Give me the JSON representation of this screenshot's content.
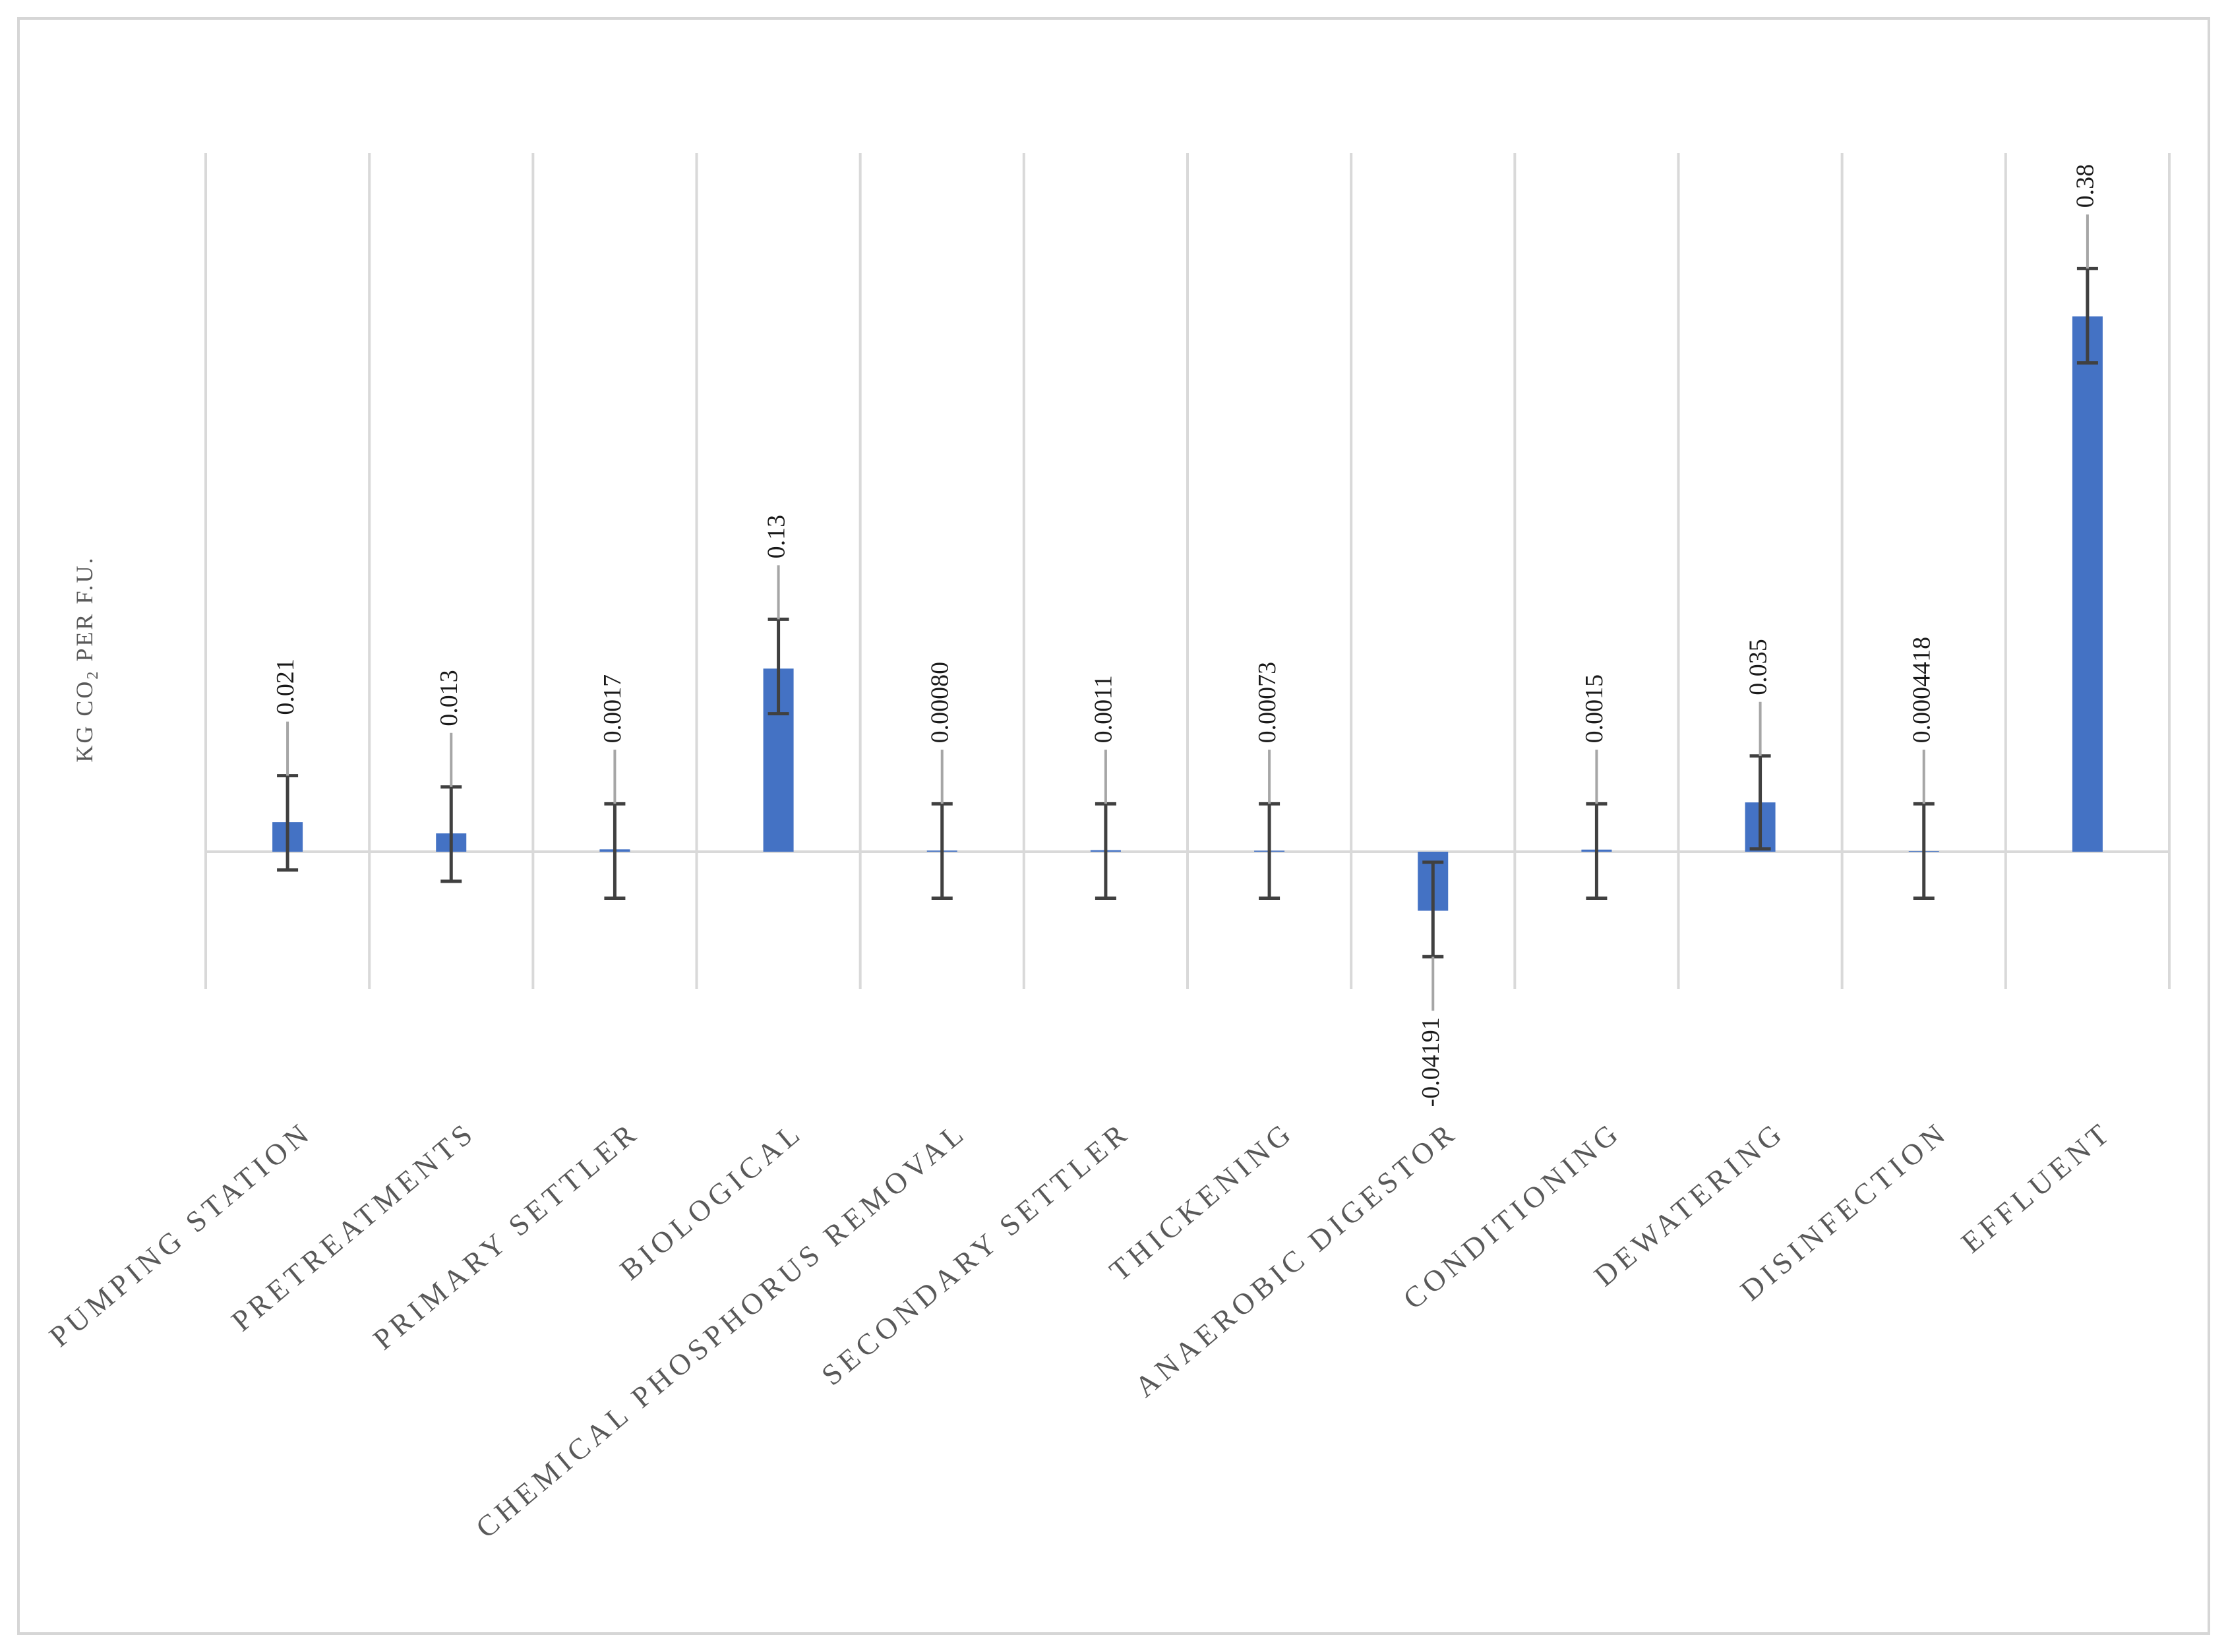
{
  "chart_data": {
    "type": "bar",
    "ylabel": "KG CO2 PER F.U.",
    "ylabel_parts": {
      "pre": "KG CO",
      "sub": "2",
      "post": " PER F.U."
    },
    "categories": [
      "PUMPING STATION",
      "PRETREATMENTS",
      "PRIMARY SETTLER",
      "BIOLOGICAL",
      "CHEMICAL PHOSPHORUS REMOVAL",
      "SECONDARY SETTLER",
      "THICKENING",
      "ANAEROBIC DIGESTOR",
      "CONDITIONING",
      "DEWATERING",
      "DISINFECTION",
      "EFFLUENT"
    ],
    "values": [
      0.021,
      0.013,
      0.0017,
      0.13,
      0.0008,
      0.0011,
      0.00073,
      -0.04191,
      0.0015,
      0.035,
      0.0004418,
      0.38
    ],
    "data_labels": [
      "0.021",
      "0.013",
      "0.0017",
      "0.13",
      "0.00080",
      "0.0011",
      "0.00073",
      "-0.04191",
      "0.0015",
      "0.035",
      "0.0004418",
      "0.38"
    ],
    "error_bars": [
      {
        "low": -0.013,
        "high": 0.054
      },
      {
        "low": -0.021,
        "high": 0.046
      },
      {
        "low": -0.033,
        "high": 0.034
      },
      {
        "low": 0.098,
        "high": 0.165
      },
      {
        "low": -0.033,
        "high": 0.034
      },
      {
        "low": -0.033,
        "high": 0.034
      },
      {
        "low": -0.033,
        "high": 0.034
      },
      {
        "low": -0.0745,
        "high": -0.0075
      },
      {
        "low": -0.033,
        "high": 0.034
      },
      {
        "low": 0.002,
        "high": 0.068
      },
      {
        "low": -0.033,
        "high": 0.034
      },
      {
        "low": 0.347,
        "high": 0.414
      }
    ],
    "ylim": [
      -0.1,
      0.5
    ],
    "grid": "vertical",
    "legend": "none",
    "colors": {
      "bar": "#4472c4",
      "grid": "#d9d9d9",
      "axis": "#d9d9d9",
      "error_bar": "#404040",
      "label_leader": "#a6a6a6"
    }
  }
}
